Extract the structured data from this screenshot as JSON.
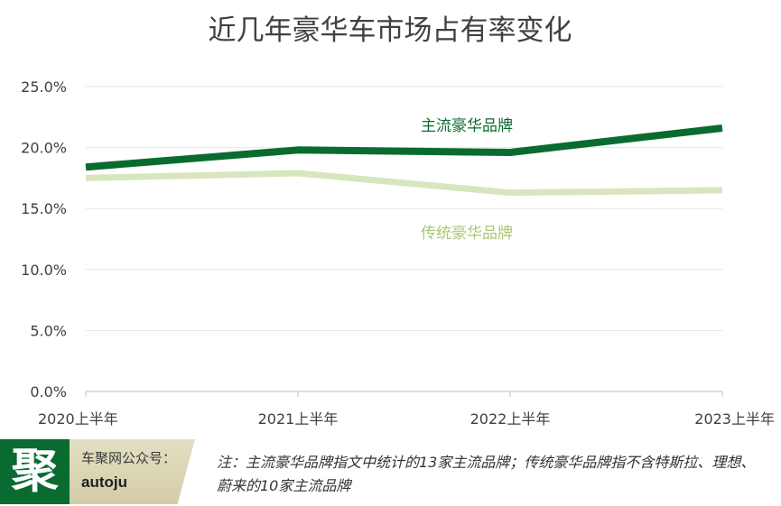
{
  "chart_data": {
    "type": "line",
    "title": "近几年豪华车市场占有率变化",
    "categories": [
      "2020上半年",
      "2021上半年",
      "2022上半年",
      "2023上半年"
    ],
    "ylim": [
      0,
      25
    ],
    "yticks": [
      "0.0%",
      "5.0%",
      "10.0%",
      "15.0%",
      "20.0%",
      "25.0%"
    ],
    "grid": true,
    "series": [
      {
        "name": "主流豪华品牌",
        "values": [
          18.4,
          19.8,
          19.6,
          21.6
        ],
        "color": "#0a6b30"
      },
      {
        "name": "传统豪华品牌",
        "values": [
          17.5,
          17.9,
          16.3,
          16.5
        ],
        "color": "#d7e6bd"
      }
    ],
    "series_label_colors": [
      "#0a6b30",
      "#a8c873"
    ]
  },
  "footer": {
    "logo_char": "聚",
    "account_label": "车聚网公众号：",
    "account_id": "autoju",
    "note": "注：主流豪华品牌指文中统计的13家主流品牌；传统豪华品牌指不含特斯拉、理想、蔚来的10家主流品牌"
  }
}
